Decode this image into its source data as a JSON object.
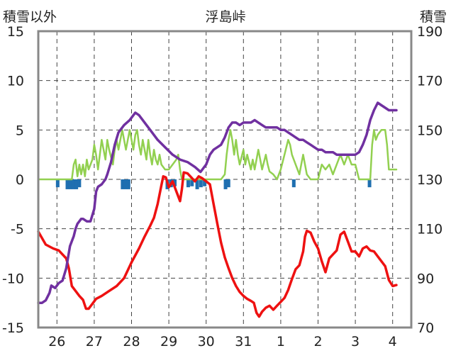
{
  "chart_data": {
    "type": "line",
    "title": "浮島峠",
    "ylabel_left": "積雪以外",
    "ylabel_right": "積雪",
    "ylim_left": [
      -15,
      15
    ],
    "yticks_left": [
      15,
      10,
      5,
      0,
      -5,
      -10,
      -15
    ],
    "ylim_right": [
      70,
      190
    ],
    "yticks_right": [
      190,
      170,
      150,
      130,
      110,
      90,
      70
    ],
    "xlim": [
      0,
      10
    ],
    "day_labels": [
      "26",
      "27",
      "28",
      "29",
      "30",
      "31",
      "1",
      "2",
      "3",
      "4"
    ],
    "colors": {
      "temperature": "#ee1111",
      "snow_depth": "#7030a0",
      "wind": "#92d050",
      "precip": "#1f6fb0",
      "grid": "#444444",
      "frame": "#888888"
    },
    "series": [
      {
        "name": "temperature",
        "axis": "left",
        "points": [
          [
            0.0,
            -5.3
          ],
          [
            0.2,
            -6.6
          ],
          [
            0.4,
            -7.0
          ],
          [
            0.55,
            -7.2
          ],
          [
            0.65,
            -7.6
          ],
          [
            0.75,
            -8.0
          ],
          [
            0.82,
            -9.0
          ],
          [
            0.9,
            -10.8
          ],
          [
            1.0,
            -11.3
          ],
          [
            1.1,
            -11.8
          ],
          [
            1.2,
            -12.2
          ],
          [
            1.28,
            -13.1
          ],
          [
            1.35,
            -13.1
          ],
          [
            1.45,
            -12.6
          ],
          [
            1.55,
            -12.1
          ],
          [
            1.7,
            -11.8
          ],
          [
            1.9,
            -11.3
          ],
          [
            2.1,
            -10.8
          ],
          [
            2.3,
            -10.0
          ],
          [
            2.5,
            -8.4
          ],
          [
            2.7,
            -7.0
          ],
          [
            2.85,
            -5.8
          ],
          [
            3.0,
            -4.7
          ],
          [
            3.1,
            -3.9
          ],
          [
            3.2,
            -2.5
          ],
          [
            3.3,
            -0.6
          ],
          [
            3.35,
            0.3
          ],
          [
            3.42,
            0.2
          ],
          [
            3.5,
            -0.8
          ],
          [
            3.6,
            -0.2
          ],
          [
            3.7,
            -1.2
          ],
          [
            3.8,
            -2.2
          ],
          [
            3.85,
            -1.0
          ],
          [
            3.9,
            0.7
          ],
          [
            4.0,
            0.6
          ],
          [
            4.1,
            0.2
          ],
          [
            4.2,
            -0.2
          ],
          [
            4.3,
            0.3
          ],
          [
            4.4,
            0.1
          ],
          [
            4.5,
            -0.2
          ],
          [
            4.6,
            -0.5
          ],
          [
            4.7,
            -2.5
          ],
          [
            4.8,
            -4.5
          ],
          [
            4.9,
            -6.4
          ],
          [
            5.0,
            -7.9
          ],
          [
            5.1,
            -9.0
          ],
          [
            5.2,
            -10.0
          ],
          [
            5.3,
            -10.8
          ],
          [
            5.4,
            -11.4
          ],
          [
            5.5,
            -11.8
          ],
          [
            5.6,
            -12.1
          ],
          [
            5.7,
            -12.3
          ],
          [
            5.78,
            -12.5
          ],
          [
            5.85,
            -13.5
          ],
          [
            5.92,
            -13.9
          ],
          [
            6.0,
            -13.4
          ],
          [
            6.1,
            -13.0
          ],
          [
            6.2,
            -12.8
          ],
          [
            6.3,
            -13.2
          ],
          [
            6.4,
            -12.8
          ],
          [
            6.5,
            -12.4
          ],
          [
            6.6,
            -12.0
          ],
          [
            6.7,
            -11.2
          ],
          [
            6.8,
            -10.1
          ],
          [
            6.9,
            -9.1
          ],
          [
            7.0,
            -8.7
          ],
          [
            7.1,
            -7.3
          ],
          [
            7.15,
            -5.8
          ],
          [
            7.2,
            -5.2
          ],
          [
            7.3,
            -5.4
          ],
          [
            7.4,
            -6.3
          ],
          [
            7.5,
            -7.0
          ],
          [
            7.6,
            -8.3
          ],
          [
            7.7,
            -9.4
          ],
          [
            7.8,
            -8.0
          ],
          [
            7.9,
            -7.6
          ],
          [
            8.0,
            -7.2
          ],
          [
            8.1,
            -5.6
          ],
          [
            8.2,
            -5.3
          ],
          [
            8.3,
            -6.3
          ],
          [
            8.4,
            -7.3
          ],
          [
            8.5,
            -7.3
          ],
          [
            8.6,
            -7.8
          ],
          [
            8.7,
            -7.0
          ],
          [
            8.8,
            -6.8
          ],
          [
            8.9,
            -7.2
          ],
          [
            9.0,
            -7.3
          ],
          [
            9.1,
            -7.8
          ],
          [
            9.2,
            -8.3
          ],
          [
            9.3,
            -8.8
          ],
          [
            9.4,
            -10.2
          ],
          [
            9.5,
            -10.8
          ],
          [
            9.6,
            -10.7
          ]
        ]
      },
      {
        "name": "snow_depth",
        "axis": "right",
        "points": [
          [
            0.0,
            80
          ],
          [
            0.1,
            80
          ],
          [
            0.2,
            81
          ],
          [
            0.3,
            84
          ],
          [
            0.35,
            87
          ],
          [
            0.45,
            86
          ],
          [
            0.55,
            88
          ],
          [
            0.65,
            89
          ],
          [
            0.75,
            94
          ],
          [
            0.85,
            103
          ],
          [
            0.95,
            107
          ],
          [
            1.0,
            110
          ],
          [
            1.05,
            112
          ],
          [
            1.1,
            113
          ],
          [
            1.15,
            114
          ],
          [
            1.2,
            114
          ],
          [
            1.3,
            113
          ],
          [
            1.4,
            113
          ],
          [
            1.5,
            118
          ],
          [
            1.55,
            125
          ],
          [
            1.6,
            127
          ],
          [
            1.7,
            128
          ],
          [
            1.8,
            130
          ],
          [
            1.85,
            132
          ],
          [
            1.95,
            137
          ],
          [
            2.05,
            144
          ],
          [
            2.15,
            149
          ],
          [
            2.3,
            152
          ],
          [
            2.45,
            154
          ],
          [
            2.6,
            157
          ],
          [
            2.7,
            156
          ],
          [
            2.8,
            154
          ],
          [
            3.0,
            150
          ],
          [
            3.2,
            146
          ],
          [
            3.4,
            143
          ],
          [
            3.6,
            140
          ],
          [
            3.8,
            138
          ],
          [
            4.0,
            137
          ],
          [
            4.2,
            135
          ],
          [
            4.35,
            133
          ],
          [
            4.5,
            136
          ],
          [
            4.6,
            140
          ],
          [
            4.7,
            142
          ],
          [
            4.8,
            143
          ],
          [
            4.9,
            144
          ],
          [
            5.0,
            147
          ],
          [
            5.1,
            151
          ],
          [
            5.2,
            153
          ],
          [
            5.3,
            153
          ],
          [
            5.4,
            152
          ],
          [
            5.5,
            153
          ],
          [
            5.6,
            153
          ],
          [
            5.7,
            153
          ],
          [
            5.8,
            154
          ],
          [
            5.9,
            153
          ],
          [
            6.0,
            152
          ],
          [
            6.1,
            151
          ],
          [
            6.2,
            151
          ],
          [
            6.3,
            151
          ],
          [
            6.4,
            151
          ],
          [
            6.5,
            150
          ],
          [
            6.6,
            150
          ],
          [
            6.7,
            149
          ],
          [
            6.8,
            148
          ],
          [
            6.9,
            147
          ],
          [
            7.0,
            146
          ],
          [
            7.1,
            146
          ],
          [
            7.2,
            145
          ],
          [
            7.3,
            144
          ],
          [
            7.4,
            143
          ],
          [
            7.5,
            142
          ],
          [
            7.6,
            142
          ],
          [
            7.7,
            141
          ],
          [
            7.8,
            141
          ],
          [
            7.9,
            141
          ],
          [
            8.0,
            140
          ],
          [
            8.1,
            140
          ],
          [
            8.2,
            140
          ],
          [
            8.3,
            140
          ],
          [
            8.4,
            140
          ],
          [
            8.5,
            140
          ],
          [
            8.6,
            141
          ],
          [
            8.7,
            144
          ],
          [
            8.8,
            148
          ],
          [
            8.9,
            154
          ],
          [
            9.0,
            158
          ],
          [
            9.1,
            161
          ],
          [
            9.2,
            160
          ],
          [
            9.3,
            159
          ],
          [
            9.4,
            158
          ],
          [
            9.5,
            158
          ],
          [
            9.6,
            158
          ]
        ]
      },
      {
        "name": "wind",
        "axis": "left",
        "points": [
          [
            0.0,
            0
          ],
          [
            0.9,
            0
          ],
          [
            0.95,
            1.5
          ],
          [
            1.0,
            2.0
          ],
          [
            1.05,
            0.3
          ],
          [
            1.1,
            1.5
          ],
          [
            1.15,
            0.5
          ],
          [
            1.2,
            1.5
          ],
          [
            1.25,
            0.3
          ],
          [
            1.3,
            2.0
          ],
          [
            1.35,
            1.0
          ],
          [
            1.45,
            2.0
          ],
          [
            1.5,
            3.5
          ],
          [
            1.55,
            2.5
          ],
          [
            1.6,
            1.0
          ],
          [
            1.65,
            2.5
          ],
          [
            1.7,
            4.0
          ],
          [
            1.75,
            3.0
          ],
          [
            1.8,
            2.0
          ],
          [
            1.85,
            4.0
          ],
          [
            1.9,
            3.0
          ],
          [
            2.0,
            1.5
          ],
          [
            2.05,
            3.0
          ],
          [
            2.1,
            4.0
          ],
          [
            2.15,
            3.0
          ],
          [
            2.2,
            4.0
          ],
          [
            2.25,
            5.0
          ],
          [
            2.3,
            4.0
          ],
          [
            2.35,
            3.0
          ],
          [
            2.4,
            4.0
          ],
          [
            2.45,
            5.0
          ],
          [
            2.5,
            4.0
          ],
          [
            2.55,
            3.0
          ],
          [
            2.6,
            4.5
          ],
          [
            2.65,
            5.0
          ],
          [
            2.7,
            3.5
          ],
          [
            2.75,
            2.5
          ],
          [
            2.8,
            4.0
          ],
          [
            2.85,
            3.0
          ],
          [
            2.9,
            2.0
          ],
          [
            2.95,
            4.0
          ],
          [
            3.0,
            2.5
          ],
          [
            3.05,
            1.5
          ],
          [
            3.1,
            3.0
          ],
          [
            3.15,
            2.0
          ],
          [
            3.2,
            1.5
          ],
          [
            3.25,
            2.5
          ],
          [
            3.3,
            1.5
          ],
          [
            3.4,
            1.0
          ],
          [
            3.5,
            1.0
          ],
          [
            3.6,
            1.5
          ],
          [
            3.7,
            2.0
          ],
          [
            3.75,
            2.5
          ],
          [
            3.8,
            1.0
          ],
          [
            3.85,
            0
          ],
          [
            4.9,
            0
          ],
          [
            5.0,
            0.5
          ],
          [
            5.05,
            2.5
          ],
          [
            5.1,
            4.0
          ],
          [
            5.15,
            5.0
          ],
          [
            5.2,
            4.0
          ],
          [
            5.25,
            2.5
          ],
          [
            5.3,
            4.0
          ],
          [
            5.35,
            2.5
          ],
          [
            5.4,
            1.5
          ],
          [
            5.5,
            3.0
          ],
          [
            5.55,
            1.5
          ],
          [
            5.6,
            2.5
          ],
          [
            5.7,
            1.0
          ],
          [
            5.75,
            2.0
          ],
          [
            5.8,
            1.0
          ],
          [
            5.9,
            3.0
          ],
          [
            5.95,
            2.0
          ],
          [
            6.0,
            1.0
          ],
          [
            6.1,
            2.5
          ],
          [
            6.15,
            1.5
          ],
          [
            6.2,
            0.8
          ],
          [
            6.3,
            0.5
          ],
          [
            6.4,
            0
          ],
          [
            6.5,
            1.0
          ],
          [
            6.6,
            2.5
          ],
          [
            6.7,
            4.0
          ],
          [
            6.75,
            3.5
          ],
          [
            6.8,
            2.5
          ],
          [
            6.9,
            1.5
          ],
          [
            7.0,
            0.5
          ],
          [
            7.05,
            1.5
          ],
          [
            7.1,
            2.5
          ],
          [
            7.15,
            1.5
          ],
          [
            7.2,
            0.5
          ],
          [
            7.3,
            0
          ],
          [
            7.5,
            0
          ],
          [
            7.6,
            1.5
          ],
          [
            7.7,
            1.0
          ],
          [
            7.8,
            1.5
          ],
          [
            7.9,
            0.5
          ],
          [
            8.0,
            1.5
          ],
          [
            8.1,
            2.5
          ],
          [
            8.2,
            1.5
          ],
          [
            8.3,
            2.5
          ],
          [
            8.4,
            1.5
          ],
          [
            8.5,
            1.5
          ],
          [
            8.6,
            0
          ],
          [
            8.9,
            0
          ],
          [
            8.95,
            3.5
          ],
          [
            9.0,
            5.0
          ],
          [
            9.05,
            4.0
          ],
          [
            9.1,
            4.5
          ],
          [
            9.2,
            5.0
          ],
          [
            9.3,
            5.0
          ],
          [
            9.35,
            3.5
          ],
          [
            9.4,
            1.0
          ],
          [
            9.5,
            1.0
          ],
          [
            9.6,
            1.0
          ]
        ]
      },
      {
        "name": "precip",
        "axis": "left",
        "type": "bar",
        "bars": [
          [
            0.52,
            -0.8
          ],
          [
            0.78,
            -1.0
          ],
          [
            0.86,
            -1.0
          ],
          [
            0.94,
            -1.0
          ],
          [
            1.02,
            -1.0
          ],
          [
            1.1,
            -0.8
          ],
          [
            2.26,
            -1.0
          ],
          [
            2.34,
            -1.0
          ],
          [
            2.42,
            -1.0
          ],
          [
            3.46,
            -1.0
          ],
          [
            3.56,
            -0.8
          ],
          [
            3.66,
            -0.7
          ],
          [
            4.02,
            -0.8
          ],
          [
            4.12,
            -0.7
          ],
          [
            4.26,
            -1.0
          ],
          [
            4.36,
            -0.8
          ],
          [
            4.46,
            -0.7
          ],
          [
            5.02,
            -1.0
          ],
          [
            5.1,
            -0.8
          ],
          [
            6.85,
            -0.8
          ],
          [
            8.88,
            -0.8
          ]
        ]
      }
    ]
  }
}
